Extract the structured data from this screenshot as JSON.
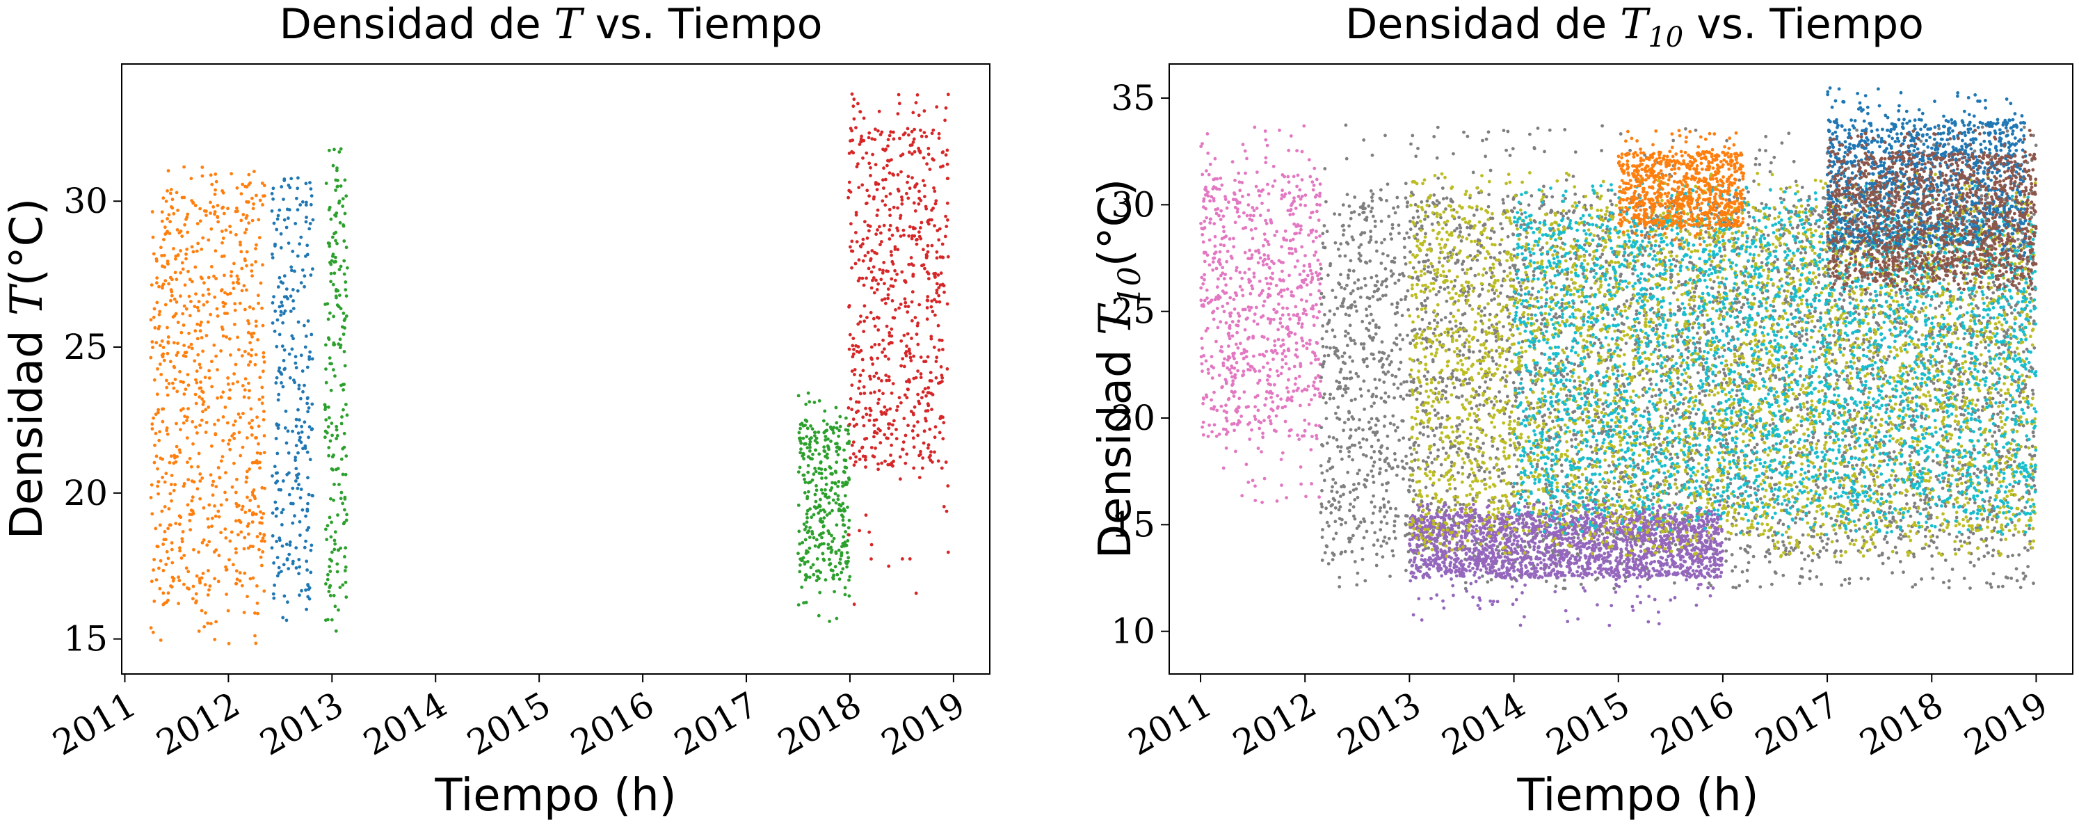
{
  "chart_data": [
    {
      "type": "scatter",
      "title_prefix": "Densidad de ",
      "title_symbol": "T",
      "title_subscript": "",
      "title_suffix": " vs. Tiempo",
      "xlabel": "Tiempo (h)",
      "ylabel_prefix": "Densidad ",
      "ylabel_symbol": "T",
      "ylabel_subscript": "",
      "ylabel_suffix": "(°C)",
      "x_ticks": [
        "2011",
        "2012",
        "2013",
        "2014",
        "2015",
        "2016",
        "2017",
        "2018",
        "2019"
      ],
      "y_ticks": [
        15,
        20,
        25,
        30
      ],
      "xlim": [
        2010.97,
        2019.35
      ],
      "ylim": [
        13.8,
        34.7
      ],
      "grid": false,
      "legend": "none",
      "series": [
        {
          "color": "#ff7f0e",
          "x_range": [
            2011.25,
            2012.35
          ],
          "y_range": [
            16.2,
            30.3
          ],
          "low_tail": 14.8,
          "high_tail": 31.2
        },
        {
          "color": "#1f77b4",
          "x_range": [
            2012.42,
            2012.82
          ],
          "y_range": [
            16.5,
            30.6
          ],
          "low_tail": 15.6,
          "high_tail": 30.8
        },
        {
          "color": "#2ca02c",
          "x_range": [
            2012.93,
            2013.15
          ],
          "y_range": [
            16.0,
            30.8
          ],
          "low_tail": 15.2,
          "high_tail": 31.8
        },
        {
          "color": "#2ca02c",
          "x_range": [
            2017.5,
            2018.0
          ],
          "y_range": [
            17.0,
            22.5
          ],
          "low_tail": 15.6,
          "high_tail": 23.5
        },
        {
          "color": "#d62728",
          "x_range": [
            2017.98,
            2018.95
          ],
          "y_range": [
            20.8,
            32.5
          ],
          "low_tail": 15.6,
          "high_tail": 33.7
        }
      ]
    },
    {
      "type": "scatter",
      "title_prefix": "Densidad de ",
      "title_symbol": "T",
      "title_subscript": "10",
      "title_suffix": " vs. Tiempo",
      "xlabel": "Tiempo (h)",
      "ylabel_prefix": "Densidad ",
      "ylabel_symbol": "T",
      "ylabel_subscript": "10",
      "ylabel_suffix": "(°C)",
      "x_ticks": [
        "2011",
        "2012",
        "2013",
        "2014",
        "2015",
        "2016",
        "2017",
        "2018",
        "2019"
      ],
      "y_ticks": [
        10,
        15,
        20,
        25,
        30,
        35
      ],
      "xlim": [
        2010.7,
        2019.35
      ],
      "ylim": [
        8.0,
        36.6
      ],
      "grid": false,
      "legend": "none",
      "series": [
        {
          "color": "#e377c2",
          "x_range": [
            2011.0,
            2012.15
          ],
          "y_range": [
            19.0,
            31.5
          ],
          "low_tail": 16.0,
          "high_tail": 33.8
        },
        {
          "color": "#7f7f7f",
          "x_range": [
            2012.15,
            2019.0
          ],
          "y_range": [
            13.5,
            30.5
          ],
          "low_tail": 12.0,
          "high_tail": 33.8
        },
        {
          "color": "#9467bd",
          "x_range": [
            2013.0,
            2016.0
          ],
          "y_range": [
            12.5,
            15.5
          ],
          "low_tail": 10.2,
          "high_tail": 16.0
        },
        {
          "color": "#bcbd22",
          "x_range": [
            2013.0,
            2019.0
          ],
          "y_range": [
            14.5,
            30.0
          ],
          "low_tail": 13.5,
          "high_tail": 31.5
        },
        {
          "color": "#17becf",
          "x_range": [
            2014.0,
            2019.0
          ],
          "y_range": [
            15.5,
            29.5
          ],
          "low_tail": 14.5,
          "high_tail": 31.0
        },
        {
          "color": "#1f77b4",
          "x_range": [
            2017.0,
            2018.9
          ],
          "y_range": [
            28.0,
            34.0
          ],
          "low_tail": 27.0,
          "high_tail": 35.5
        },
        {
          "color": "#8c564b",
          "x_range": [
            2017.0,
            2019.0
          ],
          "y_range": [
            26.5,
            32.5
          ],
          "low_tail": 26.0,
          "high_tail": 33.5
        },
        {
          "color": "#ff7f0e",
          "x_range": [
            2015.0,
            2016.2
          ],
          "y_range": [
            29.0,
            32.5
          ],
          "low_tail": 28.0,
          "high_tail": 33.5
        }
      ]
    }
  ]
}
